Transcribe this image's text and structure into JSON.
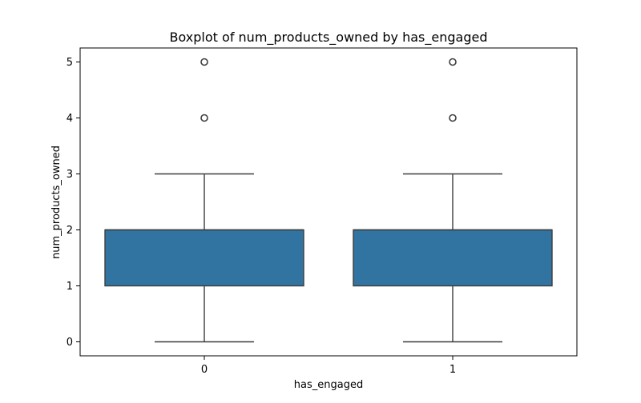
{
  "chart_data": {
    "type": "boxplot",
    "title": "Boxplot of num_products_owned by has_engaged",
    "xlabel": "has_engaged",
    "ylabel": "num_products_owned",
    "categories": [
      "0",
      "1"
    ],
    "ylim": [
      -0.25,
      5.25
    ],
    "yticks": [
      0,
      1,
      2,
      3,
      4,
      5
    ],
    "grid": false,
    "box_color": "#3274a1",
    "line_color": "#3d3d3d",
    "boxes": [
      {
        "category": "0",
        "whisker_low": 0,
        "q1": 1,
        "median": 2,
        "q3": 2,
        "whisker_high": 3,
        "outliers": [
          4,
          5
        ]
      },
      {
        "category": "1",
        "whisker_low": 0,
        "q1": 1,
        "median": 2,
        "q3": 2,
        "whisker_high": 3,
        "outliers": [
          4,
          5
        ]
      }
    ]
  }
}
